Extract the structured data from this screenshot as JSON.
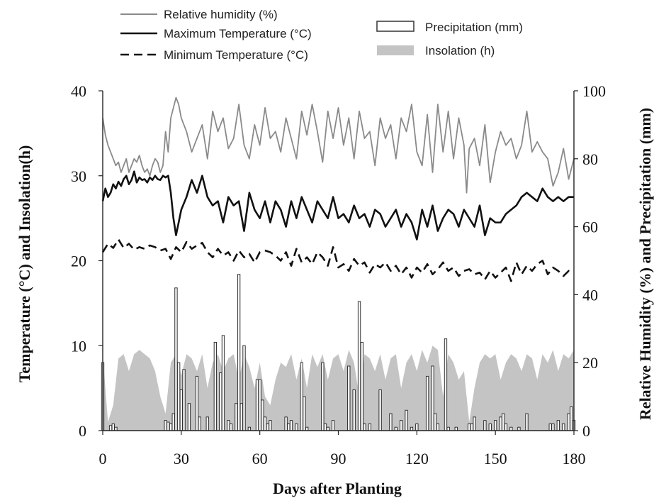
{
  "chart_data": {
    "type": "line",
    "xlabel": "Days after Planting",
    "ylabel_left": "Temperature (°C) and Insolation(h)",
    "ylabel_right": "Relative Humidity (%) and Precipitation (mm)",
    "xlim": [
      0,
      180
    ],
    "ylim_left": [
      0,
      40
    ],
    "ylim_right": [
      0,
      100
    ],
    "x_ticks": [
      "0",
      "30",
      "60",
      "90",
      "120",
      "150",
      "180"
    ],
    "y_ticks_left": [
      "0",
      "10",
      "20",
      "30",
      "40"
    ],
    "y_ticks_right": [
      "0",
      "20",
      "40",
      "60",
      "80",
      "100"
    ],
    "grid": false,
    "legend_position": "top",
    "legend": {
      "humidity": "Relative humidity (%)",
      "tmax": "Maximum Temperature (°C)",
      "tmin": "Minimum Temperature (°C)",
      "precip": "Precipitation (mm)",
      "insolation": "Insolation (h)"
    },
    "series": [
      {
        "name": "Relative humidity (%)",
        "axis": "right",
        "x": [
          0,
          1,
          2,
          3,
          4,
          5,
          6,
          7,
          8,
          9,
          10,
          11,
          12,
          13,
          14,
          15,
          16,
          17,
          18,
          19,
          20,
          21,
          22,
          23,
          24,
          25,
          26,
          27,
          28,
          29,
          30,
          32,
          34,
          36,
          38,
          40,
          42,
          44,
          46,
          48,
          50,
          52,
          54,
          56,
          58,
          60,
          62,
          64,
          66,
          68,
          70,
          72,
          74,
          76,
          78,
          80,
          82,
          84,
          86,
          88,
          90,
          92,
          94,
          96,
          98,
          100,
          102,
          104,
          106,
          108,
          110,
          112,
          114,
          116,
          118,
          120,
          122,
          124,
          126,
          128,
          130,
          132,
          134,
          136,
          138,
          139,
          140,
          142,
          144,
          146,
          148,
          150,
          152,
          154,
          156,
          158,
          160,
          162,
          164,
          166,
          168,
          170,
          172,
          174,
          176,
          178,
          180
        ],
        "values": [
          92,
          87,
          84,
          82,
          80,
          78,
          79,
          76,
          78,
          80,
          76,
          78,
          80,
          79,
          81,
          78,
          76,
          77,
          75,
          78,
          80,
          79,
          76,
          78,
          88,
          82,
          92,
          95,
          98,
          96,
          92,
          88,
          82,
          86,
          90,
          80,
          94,
          88,
          92,
          83,
          86,
          96,
          84,
          80,
          90,
          84,
          95,
          86,
          88,
          82,
          92,
          86,
          80,
          94,
          87,
          96,
          88,
          79,
          94,
          86,
          95,
          84,
          92,
          80,
          94,
          86,
          88,
          78,
          92,
          86,
          90,
          80,
          92,
          88,
          96,
          82,
          78,
          93,
          76,
          96,
          82,
          94,
          80,
          92,
          84,
          70,
          83,
          86,
          78,
          90,
          73,
          82,
          88,
          84,
          86,
          80,
          84,
          94,
          82,
          85,
          82,
          80,
          72,
          76,
          83,
          74,
          80
        ]
      },
      {
        "name": "Maximum Temperature (°C)",
        "axis": "left",
        "x": [
          0,
          1,
          2,
          3,
          4,
          5,
          6,
          7,
          8,
          9,
          10,
          11,
          12,
          13,
          14,
          15,
          16,
          17,
          18,
          19,
          20,
          21,
          22,
          23,
          24,
          25,
          26,
          27,
          28,
          30,
          32,
          34,
          36,
          38,
          40,
          42,
          44,
          46,
          48,
          50,
          52,
          54,
          56,
          58,
          60,
          62,
          64,
          66,
          68,
          70,
          72,
          74,
          76,
          78,
          80,
          82,
          84,
          86,
          88,
          90,
          92,
          94,
          96,
          98,
          100,
          102,
          104,
          106,
          108,
          110,
          112,
          114,
          116,
          118,
          120,
          122,
          124,
          126,
          128,
          130,
          132,
          134,
          136,
          138,
          140,
          142,
          144,
          146,
          148,
          150,
          152,
          154,
          156,
          158,
          160,
          162,
          164,
          166,
          168,
          170,
          172,
          174,
          176,
          178,
          180
        ],
        "values": [
          27,
          28.5,
          27.5,
          28,
          29,
          28.5,
          29.3,
          28.8,
          29.6,
          30,
          29,
          29.5,
          30.5,
          29.2,
          29.8,
          29.5,
          29.6,
          29.2,
          29.8,
          29.5,
          30,
          29.6,
          29.5,
          30,
          29.8,
          30,
          28,
          25,
          23,
          26,
          27.5,
          29.5,
          28,
          30,
          27.5,
          26.5,
          27,
          24.5,
          27.5,
          26.5,
          27,
          23.5,
          28,
          26,
          25,
          27,
          24.5,
          27,
          26,
          24,
          27,
          25,
          27.5,
          26,
          24.5,
          27,
          26,
          25,
          27.5,
          25,
          25.5,
          24.5,
          26.5,
          25,
          25.5,
          24,
          26,
          25.5,
          24,
          25,
          26,
          24,
          25.5,
          24.5,
          22.5,
          26,
          24,
          26.5,
          23.5,
          25,
          26,
          25.5,
          24,
          26,
          25,
          24,
          26.5,
          23,
          25,
          24.5,
          24.5,
          25.5,
          26,
          26.5,
          27.5,
          28,
          27.5,
          27,
          28.5,
          27.5,
          27,
          27.5,
          27,
          27.5,
          27.5
        ]
      },
      {
        "name": "Minimum Temperature (°C)",
        "axis": "left",
        "x": [
          0,
          2,
          4,
          6,
          8,
          10,
          12,
          14,
          16,
          18,
          20,
          22,
          24,
          26,
          28,
          30,
          32,
          34,
          36,
          38,
          40,
          42,
          44,
          46,
          48,
          50,
          52,
          54,
          56,
          58,
          60,
          62,
          64,
          66,
          68,
          70,
          72,
          74,
          76,
          78,
          80,
          82,
          84,
          86,
          88,
          90,
          92,
          94,
          96,
          98,
          100,
          102,
          104,
          106,
          108,
          110,
          112,
          114,
          116,
          118,
          120,
          122,
          124,
          126,
          128,
          130,
          132,
          134,
          136,
          138,
          140,
          142,
          144,
          146,
          148,
          150,
          152,
          154,
          156,
          158,
          160,
          162,
          164,
          166,
          168,
          170,
          172,
          174,
          176,
          178,
          180
        ],
        "values": [
          21,
          22,
          21.5,
          22.5,
          21.5,
          22,
          21.3,
          21.6,
          21.4,
          21.8,
          21.6,
          21.2,
          21.4,
          20.2,
          21.6,
          21,
          22.2,
          21.4,
          21.8,
          22.1,
          21,
          20.4,
          21.4,
          20.6,
          21,
          20,
          21.2,
          20.4,
          20.8,
          19.8,
          21,
          21.2,
          21,
          20.6,
          20,
          21,
          19.4,
          21.4,
          19.8,
          20.4,
          19.6,
          21,
          20.4,
          19.4,
          21.6,
          19.2,
          19.6,
          18.8,
          20.2,
          19.4,
          19.8,
          18.6,
          19.6,
          19.2,
          19.8,
          18.8,
          19.4,
          18.4,
          19.2,
          18,
          19.2,
          18.6,
          19.6,
          18.4,
          19,
          19.8,
          18.8,
          19.2,
          18.2,
          18.8,
          19,
          18.4,
          18.6,
          17.8,
          18.8,
          18,
          18.6,
          19.2,
          17.6,
          19.8,
          18.4,
          19.4,
          18.8,
          19.6,
          20,
          18.4,
          19.2,
          18.8,
          18.2,
          18.8,
          18.6
        ]
      },
      {
        "name": "Insolation (h)",
        "axis": "left",
        "x": [
          0,
          2,
          4,
          6,
          8,
          10,
          12,
          14,
          16,
          18,
          20,
          22,
          24,
          26,
          28,
          30,
          32,
          34,
          36,
          38,
          40,
          42,
          44,
          46,
          48,
          50,
          52,
          54,
          56,
          58,
          60,
          62,
          64,
          66,
          68,
          70,
          72,
          74,
          76,
          78,
          80,
          82,
          84,
          86,
          88,
          90,
          92,
          94,
          96,
          98,
          100,
          102,
          104,
          106,
          108,
          110,
          112,
          114,
          116,
          118,
          120,
          122,
          124,
          126,
          128,
          130,
          132,
          134,
          136,
          138,
          140,
          142,
          144,
          146,
          148,
          150,
          152,
          154,
          156,
          158,
          160,
          162,
          164,
          166,
          168,
          170,
          172,
          174,
          176,
          178,
          180
        ],
        "values": [
          9,
          1,
          3,
          8.5,
          9,
          7,
          9,
          9.5,
          9,
          8.5,
          7,
          4,
          2,
          8,
          9,
          6.5,
          9,
          8.5,
          7,
          9,
          5,
          8,
          9,
          7,
          8.5,
          9,
          6,
          9,
          7.5,
          5,
          8,
          4,
          3,
          6,
          8,
          7.5,
          9,
          6,
          8.5,
          5,
          9,
          7.5,
          9,
          6,
          8.5,
          9,
          7,
          9.5,
          8,
          4,
          9,
          8.5,
          7,
          9,
          6,
          8.5,
          9,
          5,
          8,
          9,
          7,
          9.5,
          8,
          10,
          9.5,
          4,
          9,
          8,
          6,
          7,
          1,
          5,
          8,
          9,
          8.5,
          9,
          6,
          8,
          9,
          8.5,
          7,
          9,
          8.5,
          6,
          9,
          8,
          9.5,
          7,
          9,
          8.5,
          9.5
        ]
      },
      {
        "name": "Precipitation (mm)",
        "type": "bar",
        "axis": "right",
        "x": [
          0,
          3,
          4,
          5,
          24,
          25,
          26,
          27,
          28,
          29,
          30,
          31,
          33,
          36,
          37,
          40,
          43,
          45,
          46,
          48,
          49,
          51,
          52,
          53,
          54,
          56,
          59,
          60,
          61,
          62,
          63,
          64,
          70,
          71,
          72,
          74,
          76,
          77,
          78,
          84,
          85,
          86,
          88,
          94,
          96,
          98,
          99,
          100,
          102,
          106,
          110,
          112,
          114,
          116,
          118,
          120,
          124,
          126,
          127,
          128,
          131,
          132,
          135,
          140,
          141,
          142,
          146,
          148,
          150,
          152,
          153,
          154,
          156,
          159,
          162,
          171,
          172,
          174,
          176,
          178,
          179,
          180
        ],
        "values": [
          20,
          1.5,
          2,
          1,
          3,
          2.5,
          2,
          5,
          42,
          20,
          12,
          18,
          8,
          16,
          4,
          4,
          26,
          17,
          28,
          3,
          2,
          8,
          46,
          8,
          25,
          1,
          15,
          15,
          9,
          4,
          2,
          3,
          4,
          2,
          3,
          2,
          20,
          10,
          1,
          20,
          2,
          1,
          3,
          19,
          12,
          38,
          26,
          2,
          2,
          12,
          5,
          1,
          3,
          6,
          1,
          2,
          16,
          19,
          5,
          2,
          27,
          1,
          1,
          2,
          2,
          4,
          3,
          2,
          3,
          4,
          5,
          2,
          1,
          1,
          5,
          2,
          2,
          3,
          2,
          5,
          7,
          3
        ]
      }
    ]
  }
}
